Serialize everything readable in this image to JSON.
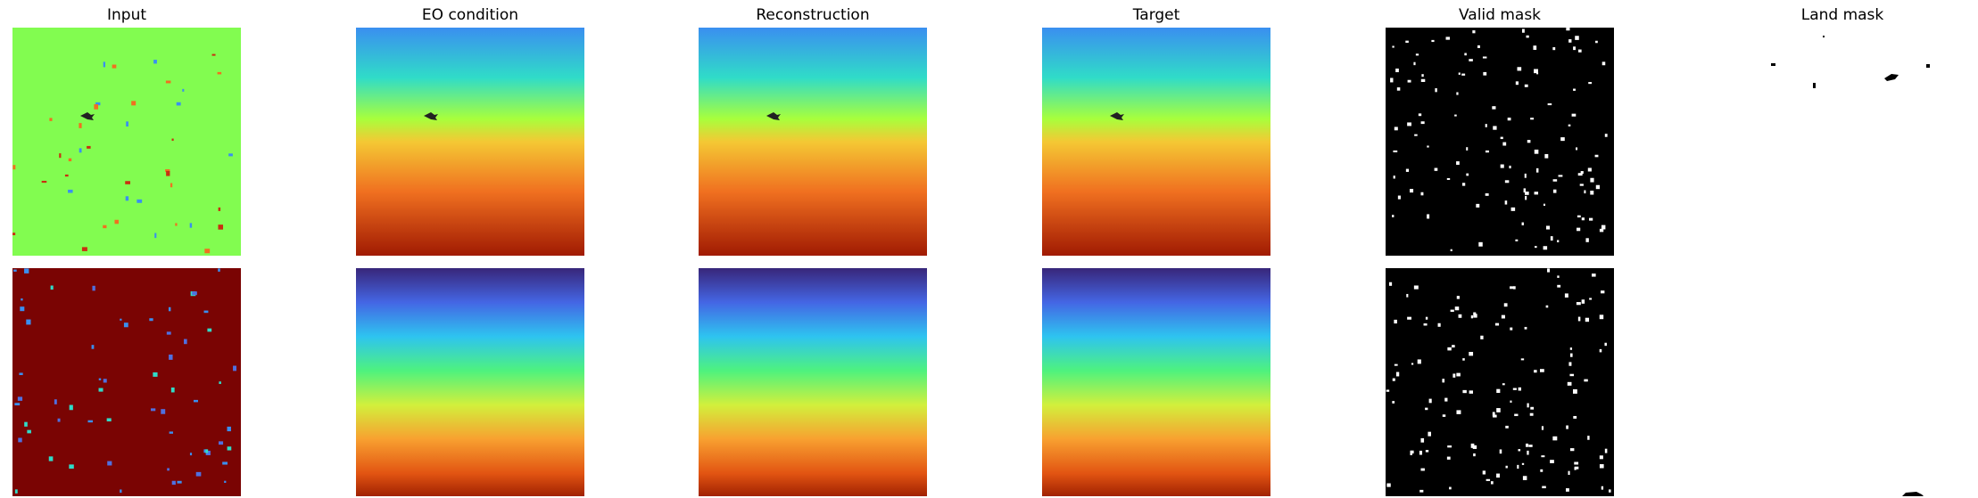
{
  "titles": [
    "Input",
    "EO condition",
    "Reconstruction",
    "Target",
    "Valid mask",
    "Land mask"
  ]
}
